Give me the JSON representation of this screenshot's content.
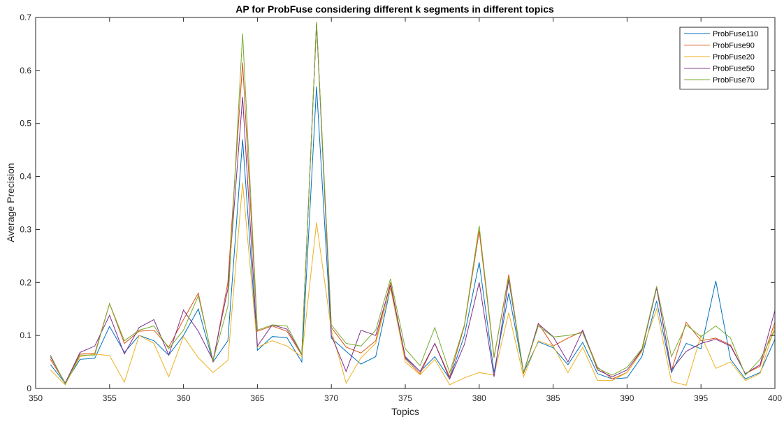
{
  "chart_data": {
    "type": "line",
    "title": "AP for ProbFuse considering different k segments in different topics",
    "xlabel": "Topics",
    "ylabel": "Average Precision",
    "xlim": [
      350,
      400
    ],
    "ylim": [
      0,
      0.7
    ],
    "xticks": [
      "350",
      "355",
      "360",
      "365",
      "370",
      "375",
      "380",
      "385",
      "390",
      "395",
      "400"
    ],
    "yticks": [
      "0",
      "0.1",
      "0.2",
      "0.3",
      "0.4",
      "0.5",
      "0.6",
      "0.7"
    ],
    "grid": false,
    "legend_position": "top-right",
    "x": [
      351,
      352,
      353,
      354,
      355,
      356,
      357,
      358,
      359,
      360,
      361,
      362,
      363,
      364,
      365,
      366,
      367,
      368,
      369,
      370,
      371,
      372,
      373,
      374,
      375,
      376,
      377,
      378,
      379,
      380,
      381,
      382,
      383,
      384,
      385,
      386,
      387,
      388,
      389,
      390,
      391,
      392,
      393,
      394,
      395,
      396,
      397,
      398,
      399,
      400
    ],
    "series": [
      {
        "name": "ProbFuse110",
        "color": "#0072BD",
        "values": [
          0.045,
          0.01,
          0.055,
          0.057,
          0.117,
          0.068,
          0.1,
          0.09,
          0.063,
          0.1,
          0.15,
          0.05,
          0.09,
          0.47,
          0.072,
          0.098,
          0.096,
          0.05,
          0.57,
          0.095,
          0.07,
          0.046,
          0.06,
          0.19,
          0.058,
          0.032,
          0.06,
          0.018,
          0.1,
          0.238,
          0.03,
          0.18,
          0.03,
          0.088,
          0.077,
          0.045,
          0.087,
          0.028,
          0.018,
          0.02,
          0.06,
          0.165,
          0.03,
          0.085,
          0.075,
          0.203,
          0.055,
          0.018,
          0.03,
          0.093
        ]
      },
      {
        "name": "ProbFuse90",
        "color": "#D95319",
        "values": [
          0.055,
          0.01,
          0.065,
          0.066,
          0.16,
          0.085,
          0.108,
          0.11,
          0.078,
          0.13,
          0.18,
          0.05,
          0.2,
          0.615,
          0.108,
          0.118,
          0.108,
          0.063,
          0.69,
          0.115,
          0.078,
          0.067,
          0.09,
          0.2,
          0.056,
          0.028,
          0.085,
          0.022,
          0.118,
          0.297,
          0.058,
          0.215,
          0.028,
          0.123,
          0.08,
          0.095,
          0.108,
          0.04,
          0.018,
          0.03,
          0.072,
          0.19,
          0.033,
          0.125,
          0.09,
          0.095,
          0.082,
          0.028,
          0.042,
          0.125
        ]
      },
      {
        "name": "ProbFuse20",
        "color": "#EDB120",
        "values": [
          0.035,
          0.007,
          0.06,
          0.065,
          0.062,
          0.012,
          0.1,
          0.085,
          0.022,
          0.098,
          0.058,
          0.03,
          0.053,
          0.388,
          0.078,
          0.09,
          0.08,
          0.06,
          0.313,
          0.11,
          0.01,
          0.058,
          0.085,
          0.19,
          0.05,
          0.026,
          0.055,
          0.007,
          0.02,
          0.03,
          0.025,
          0.143,
          0.022,
          0.09,
          0.08,
          0.03,
          0.078,
          0.015,
          0.015,
          0.03,
          0.07,
          0.15,
          0.013,
          0.006,
          0.1,
          0.038,
          0.05,
          0.015,
          0.028,
          0.118
        ]
      },
      {
        "name": "ProbFuse50",
        "color": "#7E2F8E",
        "values": [
          0.06,
          0.01,
          0.068,
          0.08,
          0.138,
          0.065,
          0.115,
          0.13,
          0.063,
          0.148,
          0.108,
          0.053,
          0.188,
          0.55,
          0.08,
          0.12,
          0.112,
          0.065,
          0.69,
          0.1,
          0.032,
          0.11,
          0.1,
          0.195,
          0.06,
          0.032,
          0.085,
          0.018,
          0.083,
          0.2,
          0.022,
          0.205,
          0.03,
          0.122,
          0.098,
          0.05,
          0.11,
          0.035,
          0.022,
          0.035,
          0.073,
          0.19,
          0.035,
          0.07,
          0.085,
          0.093,
          0.08,
          0.028,
          0.045,
          0.147
        ]
      },
      {
        "name": "ProbFuse70",
        "color": "#77AC30",
        "values": [
          0.063,
          0.008,
          0.063,
          0.063,
          0.16,
          0.09,
          0.11,
          0.118,
          0.075,
          0.11,
          0.175,
          0.053,
          0.155,
          0.67,
          0.11,
          0.12,
          0.118,
          0.065,
          0.692,
          0.12,
          0.085,
          0.08,
          0.11,
          0.207,
          0.075,
          0.043,
          0.115,
          0.03,
          0.12,
          0.307,
          0.06,
          0.21,
          0.03,
          0.118,
          0.097,
          0.1,
          0.105,
          0.038,
          0.025,
          0.04,
          0.075,
          0.193,
          0.06,
          0.12,
          0.098,
          0.118,
          0.095,
          0.025,
          0.055,
          0.11
        ]
      }
    ]
  }
}
